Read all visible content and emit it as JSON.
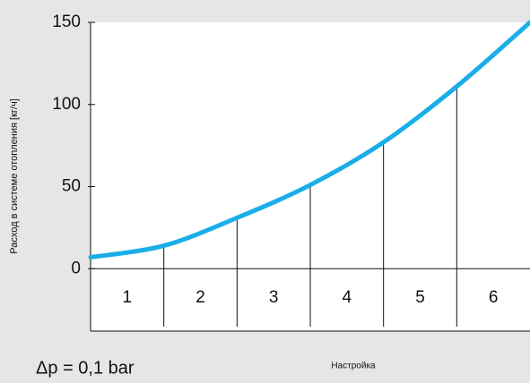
{
  "chart_data": {
    "type": "line",
    "ylabel": "Расход  в  системе  отопления  [кг/ч]",
    "xlabel": "Настройка",
    "annotation": "Δp = 0,1 bar",
    "categories": [
      "1",
      "2",
      "3",
      "4",
      "5",
      "6"
    ],
    "x": [
      0,
      1,
      2,
      3,
      4,
      5,
      6
    ],
    "series": [
      {
        "color": "#1aaee8",
        "values": [
          7,
          14,
          31,
          51,
          77,
          111,
          150
        ]
      }
    ],
    "xlim": [
      0,
      6
    ],
    "ylim": [
      -38,
      150
    ],
    "yticks": [
      0,
      50,
      100,
      150
    ]
  }
}
